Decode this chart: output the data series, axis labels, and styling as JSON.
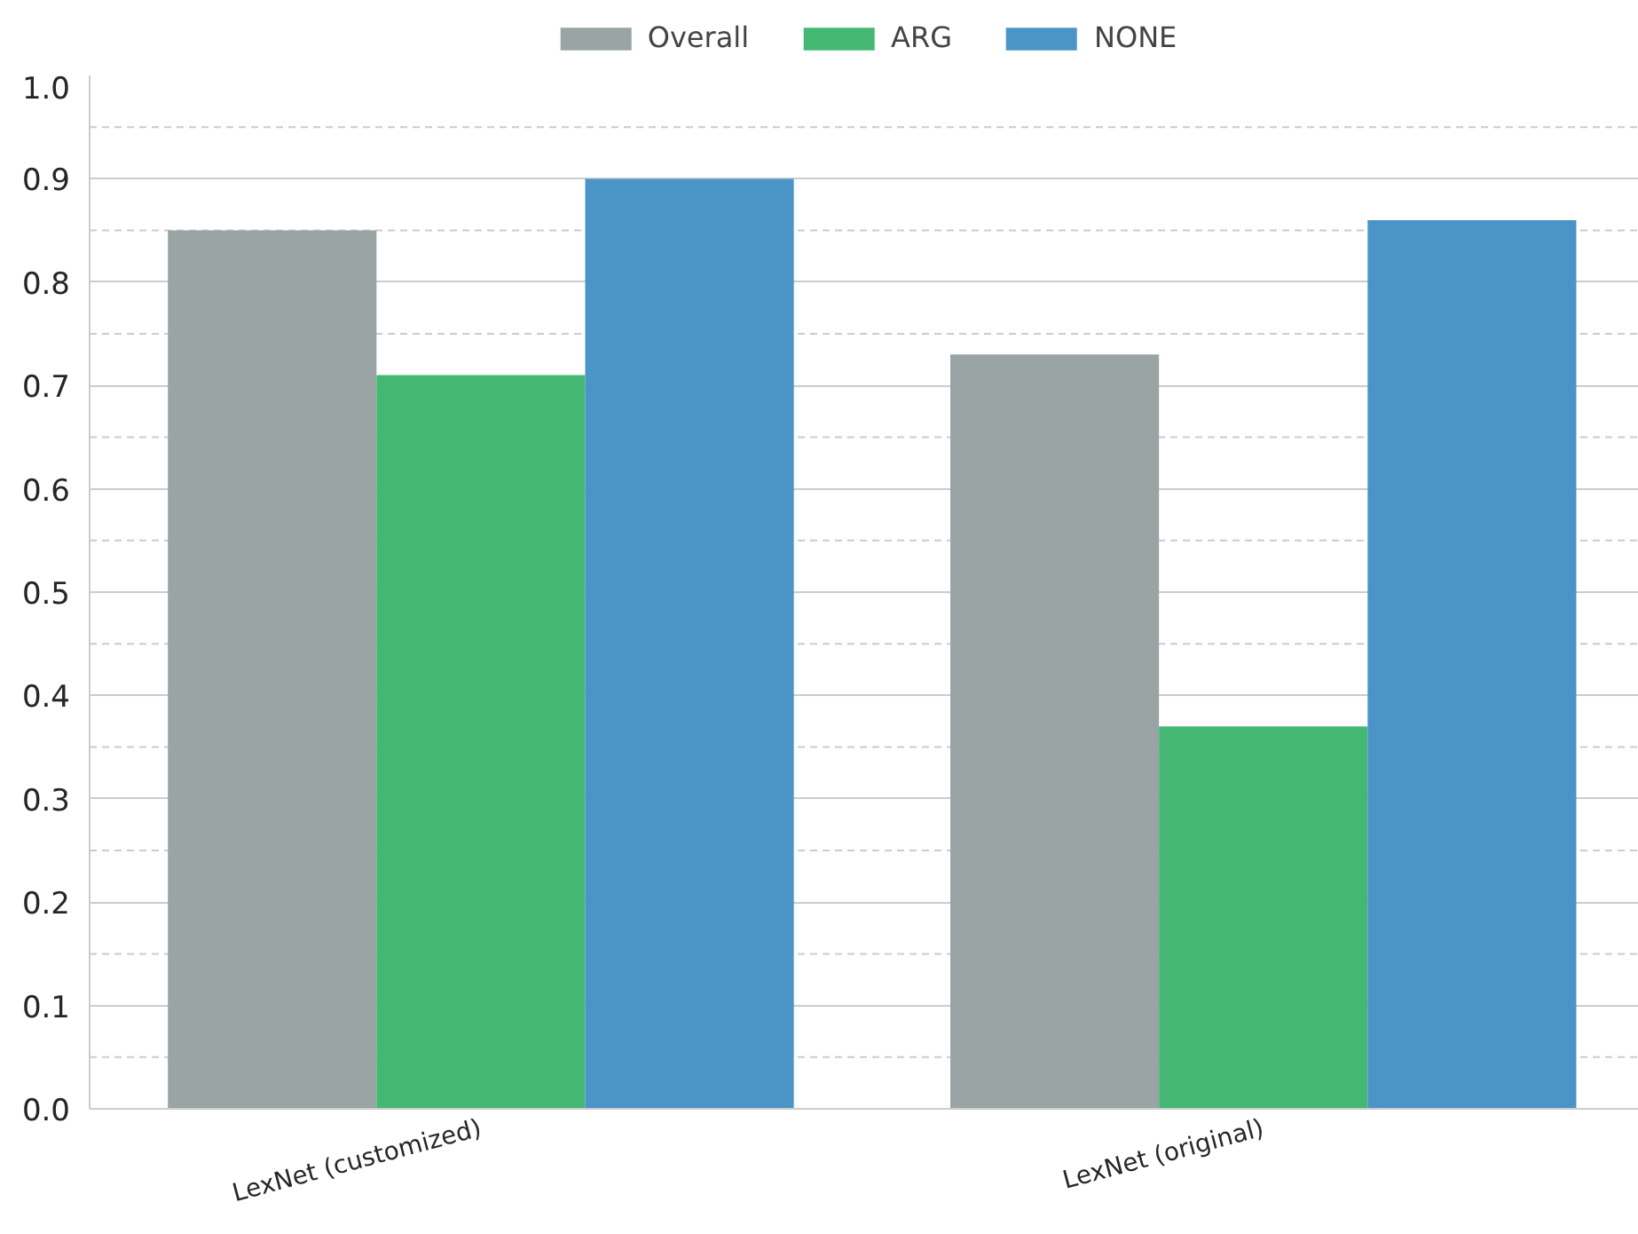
{
  "chart_data": {
    "type": "bar",
    "categories": [
      "LexNet (customized)",
      "LexNet (original)"
    ],
    "series": [
      {
        "name": "Overall",
        "color": "#9aa4a5",
        "values": [
          0.85,
          0.73
        ]
      },
      {
        "name": "ARG",
        "color": "#44b873",
        "values": [
          0.71,
          0.37
        ]
      },
      {
        "name": "NONE",
        "color": "#4a94c8",
        "values": [
          0.9,
          0.86
        ]
      }
    ],
    "ylim": [
      0,
      1.0
    ],
    "yticks": [
      {
        "value": 0,
        "label": "0.0"
      },
      {
        "value": 0.05,
        "label": null
      },
      0.1,
      {
        "value": 0.15,
        "label": null
      },
      0.2,
      {
        "value": 0.25,
        "label": null
      },
      0.3,
      {
        "value": 0.35,
        "label": null
      },
      0.4,
      {
        "value": 0.45,
        "label": null
      },
      0.5,
      {
        "value": 0.55,
        "label": null
      },
      0.6,
      {
        "value": 0.65,
        "label": null
      },
      0.7,
      {
        "value": 0.75,
        "label": null
      },
      0.8,
      {
        "value": 0.85,
        "label": null
      },
      0.9,
      {
        "value": 0.95,
        "label": null
      },
      {
        "value": 1.0,
        "label": "1.0"
      }
    ],
    "grid": "y",
    "legend": "top"
  }
}
